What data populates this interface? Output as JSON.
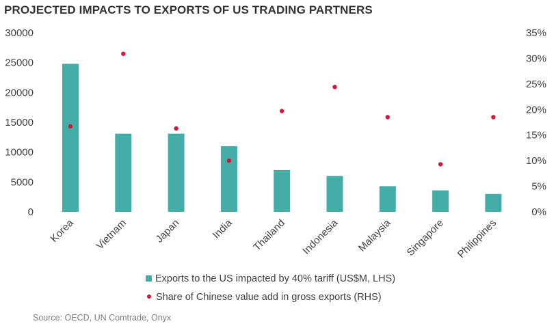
{
  "chart_data": {
    "type": "bar",
    "title": "PROJECTED IMPACTS TO EXPORTS OF US TRADING PARTNERS",
    "categories": [
      "Korea",
      "Vietnam",
      "Japan",
      "India",
      "Thailand",
      "Indonesia",
      "Malaysia",
      "Singapore",
      "Philippines"
    ],
    "series": [
      {
        "name": "Exports to the US impacted by 40% tariff (US$M, LHS)",
        "type": "bar",
        "axis": "left",
        "color": "#45ada8",
        "values": [
          24800,
          13100,
          13100,
          11000,
          7000,
          6000,
          4300,
          3600,
          3000
        ]
      },
      {
        "name": "Share of Chinese value add in gross exports (RHS)",
        "type": "scatter",
        "axis": "right",
        "color": "#d6163a",
        "values": [
          16.7,
          30.9,
          16.3,
          10.0,
          19.7,
          24.4,
          18.5,
          9.3,
          18.5
        ]
      }
    ],
    "left_axis": {
      "range": [
        0,
        30000
      ],
      "ticks": [
        "0",
        "5000",
        "10000",
        "15000",
        "20000",
        "25000",
        "30000"
      ]
    },
    "right_axis": {
      "range": [
        0,
        35
      ],
      "ticks": [
        "0%",
        "5%",
        "10%",
        "15%",
        "20%",
        "25%",
        "30%",
        "35%"
      ]
    },
    "grid": false,
    "legend_position": "bottom"
  },
  "source": "Source: OECD, UN Comtrade, Onyx"
}
